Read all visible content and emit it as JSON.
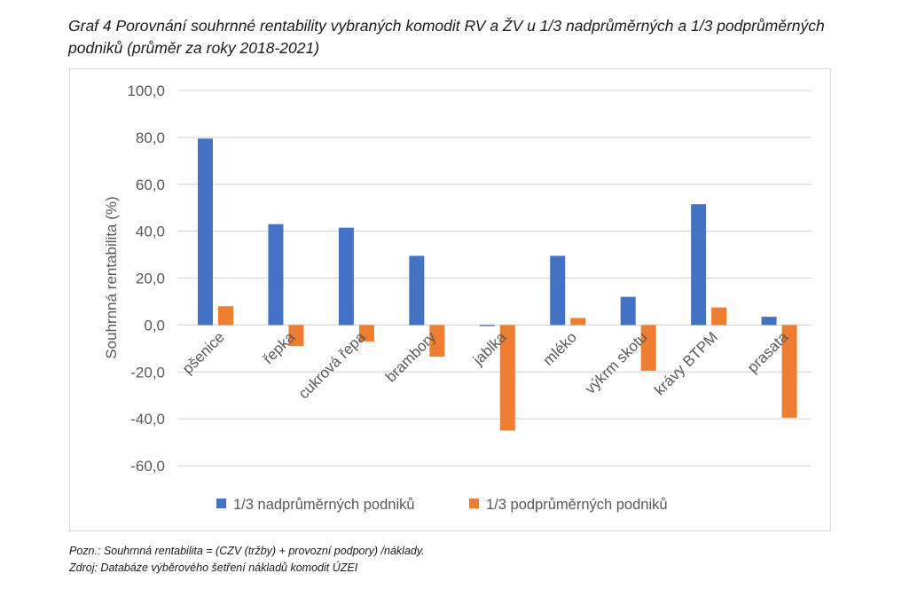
{
  "title": "Graf 4 Porovnání souhrnné rentability vybraných komodit RV a ŽV u 1/3 nadprůměrných a 1/3 podprůměrných podniků (průměr za roky 2018-2021)",
  "notes": {
    "poznamka": "Pozn.: Souhrnná rentabilita = (CZV (tržby) + provozní podpory) /náklady.",
    "zdroj": "Zdroj: Databáze výběrového šetření nákladů komodit ÚZEI"
  },
  "chart_data": {
    "type": "bar",
    "title": "",
    "xlabel": "",
    "ylabel": "Souhrnná rentabilita (%)",
    "ylim": [
      -60,
      100
    ],
    "yticks": [
      -60,
      -40,
      -20,
      0,
      20,
      40,
      60,
      80,
      100
    ],
    "ytick_labels": [
      "-60,0",
      "-40,0",
      "-20,0",
      "0,0",
      "20,0",
      "40,0",
      "60,0",
      "80,0",
      "100,0"
    ],
    "grid": true,
    "legend_position": "bottom",
    "categories": [
      "pšenice",
      "řepka",
      "cukrová řepa",
      "brambory",
      "jablka",
      "mléko",
      "výkrm skotu",
      "krávy BTPM",
      "prasata"
    ],
    "series": [
      {
        "name": "1/3 nadprůměrných podniků",
        "color": "#4472c4",
        "values": [
          79.5,
          43.0,
          41.5,
          29.5,
          -0.5,
          29.5,
          12.0,
          51.5,
          3.5
        ]
      },
      {
        "name": "1/3 podprůměrných podniků",
        "color": "#ed7d31",
        "values": [
          8.0,
          -9.0,
          -7.0,
          -13.5,
          -45.0,
          3.0,
          -19.5,
          7.5,
          -39.5
        ]
      }
    ]
  }
}
